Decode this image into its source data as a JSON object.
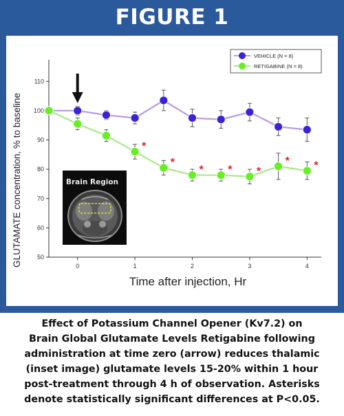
{
  "figure_title": "FIGURE 1",
  "caption_lines": [
    "Effect of Potassium Channel Opener (Kv7.2) on",
    "Brain Global Glutamate Levels Retigabine following",
    "administration at time zero (arrow) reduces thalamic",
    "(inset image) glutamate levels 15-20% within 1 hour",
    "post-treatment through 4 h of observation.  Asterisks",
    "denote statistically significant differences at P<0.05."
  ],
  "inset_label": "Brain Region",
  "colors": {
    "frame": "#2a5a9c",
    "vehicle": "#3b22d6",
    "vehicle_line": "#b79ae6",
    "retigabine": "#66ef22",
    "retigabine_line": "#a6ea86",
    "asterisk": "#e0202a",
    "inset_highlight": "#e8dc2a"
  },
  "chart_data": {
    "type": "line",
    "xlabel": "Time after injection, Hr",
    "ylabel": "GLUTAMATE concentration, % to baseline",
    "ylim": [
      50,
      115
    ],
    "xlim": [
      -0.5,
      4.2
    ],
    "xticks": [
      0,
      1,
      2,
      3,
      4
    ],
    "xtick_labels": [
      "0",
      "1",
      "2",
      "3",
      "4"
    ],
    "yticks": [
      50,
      60,
      70,
      80,
      90,
      100,
      110
    ],
    "legend_position": "top-right",
    "grid": false,
    "annotation": "arrow at time zero",
    "series": [
      {
        "name": "VEHICLE (N = 8)",
        "x": [
          -0.5,
          0,
          0.5,
          1,
          1.5,
          2,
          2.5,
          3,
          3.5,
          4
        ],
        "y": [
          100,
          100,
          98.5,
          97.5,
          103.5,
          97.5,
          97,
          99.5,
          94.5,
          93.5
        ],
        "err": [
          0,
          1.5,
          1.5,
          2,
          3.5,
          3,
          3,
          3,
          3,
          4
        ]
      },
      {
        "name": "RETIGABINE (N = 8)",
        "x": [
          -0.5,
          0,
          0.5,
          1,
          1.5,
          2,
          2.5,
          3,
          3.5,
          4
        ],
        "y": [
          100,
          95.5,
          91.5,
          86,
          80.5,
          78,
          78,
          77.5,
          81,
          79.5
        ],
        "err": [
          0,
          2,
          2,
          2.5,
          2.5,
          2,
          2,
          2.5,
          4.5,
          3
        ],
        "significant": [
          false,
          false,
          false,
          true,
          true,
          true,
          true,
          true,
          true,
          true
        ]
      }
    ]
  }
}
